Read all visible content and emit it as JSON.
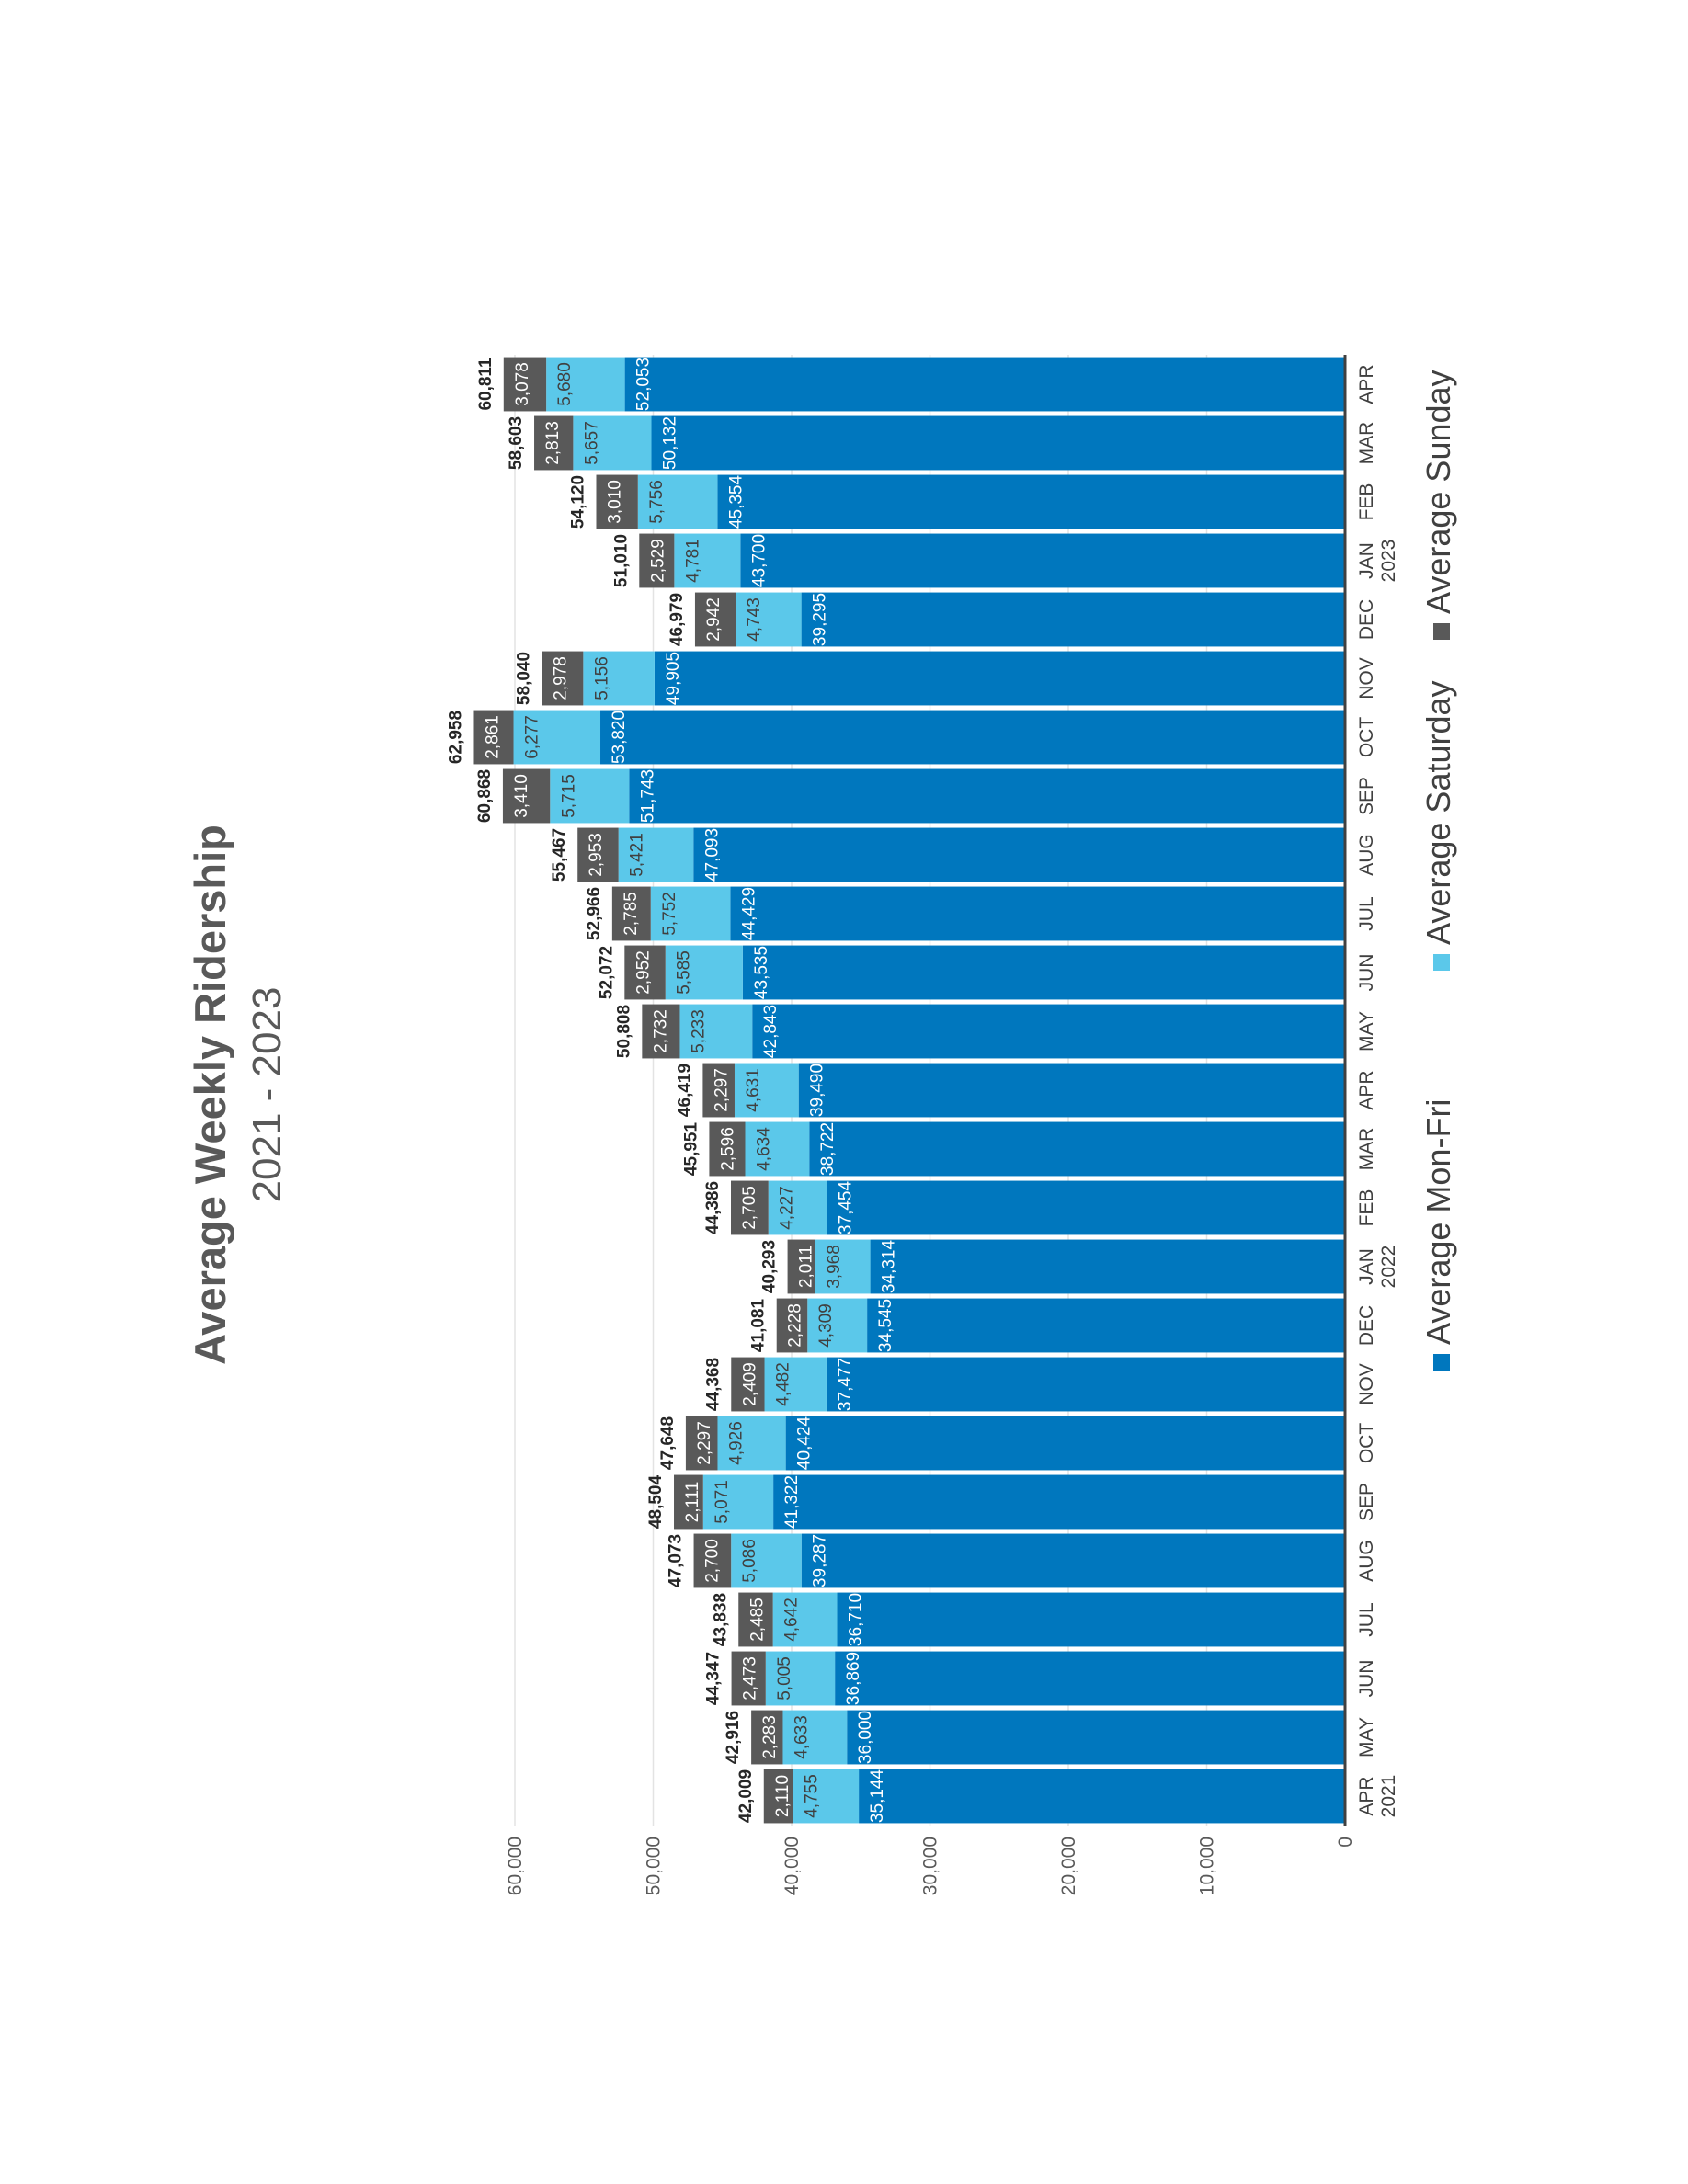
{
  "chart_data": {
    "type": "bar",
    "title": "Average Weekly Ridership",
    "subtitle": "2021 - 2023",
    "stacked": true,
    "orientation": "vertical (page rotated 90° counter-clockwise)",
    "categories": [
      {
        "month": "APR",
        "year": "2021"
      },
      {
        "month": "MAY",
        "year": ""
      },
      {
        "month": "JUN",
        "year": ""
      },
      {
        "month": "JUL",
        "year": ""
      },
      {
        "month": "AUG",
        "year": ""
      },
      {
        "month": "SEP",
        "year": ""
      },
      {
        "month": "OCT",
        "year": ""
      },
      {
        "month": "NOV",
        "year": ""
      },
      {
        "month": "DEC",
        "year": ""
      },
      {
        "month": "JAN",
        "year": "2022"
      },
      {
        "month": "FEB",
        "year": ""
      },
      {
        "month": "MAR",
        "year": ""
      },
      {
        "month": "APR",
        "year": ""
      },
      {
        "month": "MAY",
        "year": ""
      },
      {
        "month": "JUN",
        "year": ""
      },
      {
        "month": "JUL",
        "year": ""
      },
      {
        "month": "AUG",
        "year": ""
      },
      {
        "month": "SEP",
        "year": ""
      },
      {
        "month": "OCT",
        "year": ""
      },
      {
        "month": "NOV",
        "year": ""
      },
      {
        "month": "DEC",
        "year": ""
      },
      {
        "month": "JAN",
        "year": "2023"
      },
      {
        "month": "FEB",
        "year": ""
      },
      {
        "month": "MAR",
        "year": ""
      },
      {
        "month": "APR",
        "year": ""
      }
    ],
    "series": [
      {
        "name": "Average Mon-Fri",
        "color": "#0077BE",
        "label_color": "#ffffff",
        "values": [
          35144,
          36000,
          36869,
          36710,
          39287,
          41322,
          40424,
          37477,
          34545,
          34314,
          37454,
          38722,
          39490,
          42843,
          43535,
          44429,
          47093,
          51743,
          53820,
          49905,
          39295,
          43700,
          45354,
          50132,
          52053
        ]
      },
      {
        "name": "Average Saturday",
        "color": "#5BC8EA",
        "label_color": "#404040",
        "values": [
          4755,
          4633,
          5005,
          4642,
          5086,
          5071,
          4926,
          4482,
          4309,
          3968,
          4227,
          4634,
          4631,
          5233,
          5585,
          5752,
          5421,
          5715,
          6277,
          5156,
          4743,
          4781,
          5756,
          5657,
          5680
        ]
      },
      {
        "name": "Average Sunday",
        "color": "#595959",
        "label_color": "#ffffff",
        "values": [
          2110,
          2283,
          2473,
          2485,
          2700,
          2111,
          2297,
          2409,
          2228,
          2011,
          2705,
          2596,
          2297,
          2732,
          2952,
          2785,
          2953,
          3410,
          2861,
          2978,
          2942,
          2529,
          3010,
          2813,
          3078
        ]
      }
    ],
    "totals": [
      42009,
      42916,
      44347,
      43838,
      47073,
      48504,
      47648,
      44368,
      41081,
      40293,
      44386,
      45951,
      46419,
      50808,
      52072,
      52966,
      55467,
      60868,
      62958,
      58040,
      46979,
      51010,
      54120,
      58603,
      60811
    ],
    "yticks": [
      0,
      10000,
      20000,
      30000,
      40000,
      50000,
      60000
    ],
    "ylim": [
      0,
      66000
    ],
    "grid": true,
    "legend_position": "bottom"
  }
}
